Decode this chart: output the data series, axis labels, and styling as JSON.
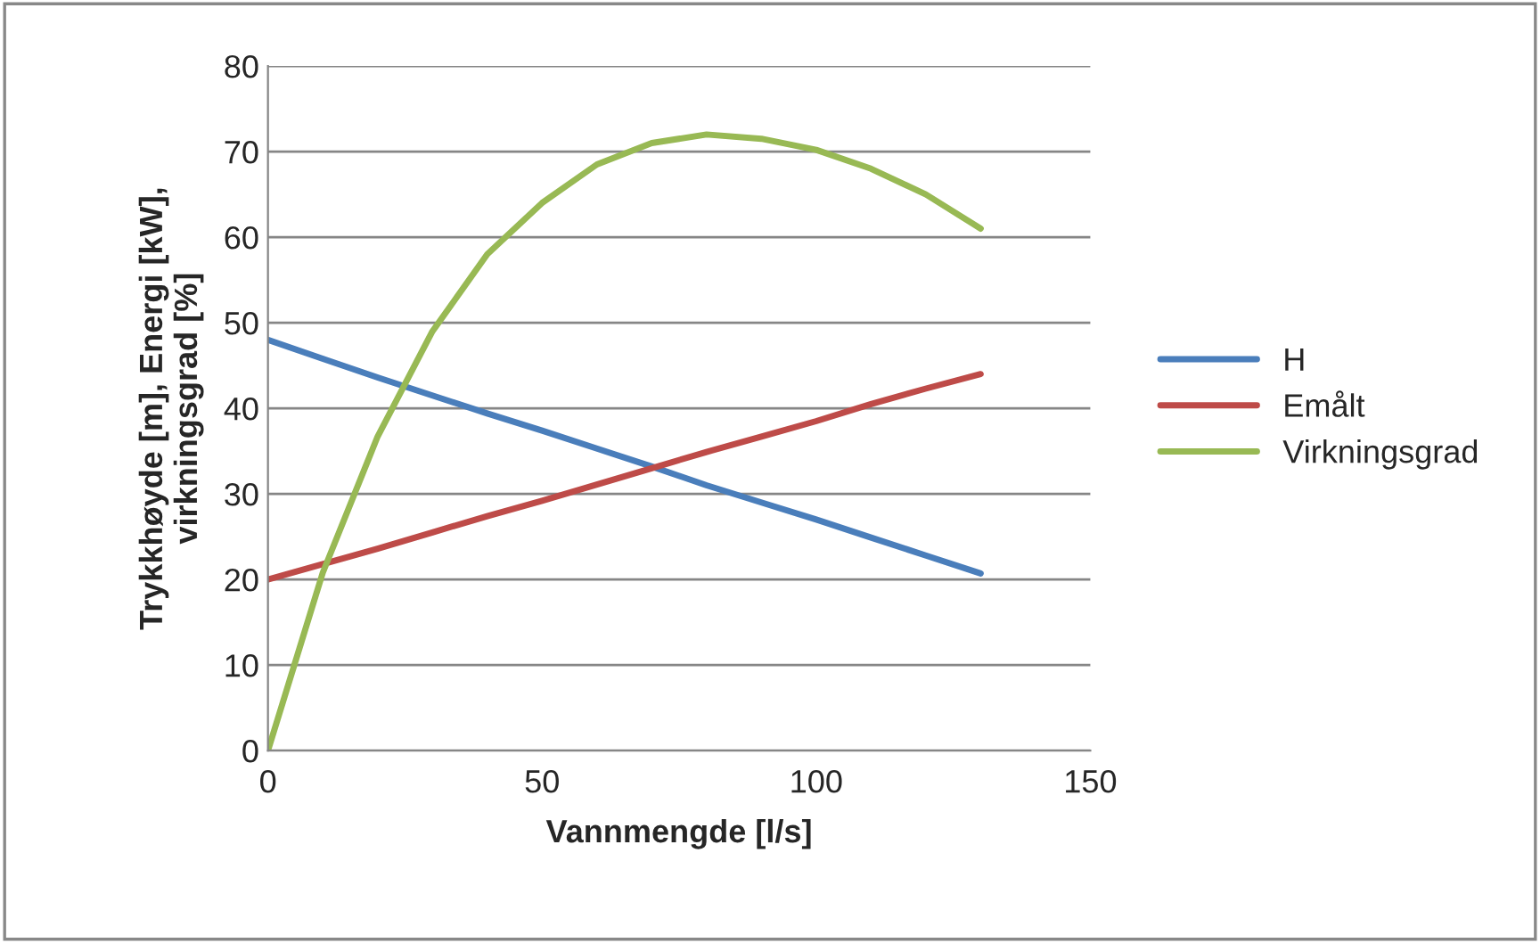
{
  "chart_data": {
    "type": "line",
    "xlabel": "Vannmengde [l/s]",
    "ylabel": "Trykkhøyde [m], Energi [kW],\nvirkningsgrad [%]",
    "x": [
      0,
      10,
      20,
      30,
      40,
      50,
      60,
      70,
      80,
      90,
      100,
      110,
      120,
      130
    ],
    "series": [
      {
        "name": "H",
        "color": "#4a7ebb",
        "values": [
          48,
          45.8,
          43.6,
          41.5,
          39.4,
          37.4,
          35.3,
          33.2,
          31,
          29,
          27,
          24.9,
          22.8,
          20.7
        ]
      },
      {
        "name": "Emålt",
        "color": "#be4b48",
        "values": [
          20,
          21.8,
          23.6,
          25.5,
          27.4,
          29.2,
          31.1,
          33,
          34.9,
          36.7,
          38.5,
          40.5,
          42.3,
          44
        ]
      },
      {
        "name": "Virkningsgrad",
        "color": "#98b954",
        "values": [
          0,
          20.8,
          36.7,
          49,
          58,
          64,
          68.5,
          71,
          72,
          71.5,
          70.2,
          68,
          65,
          61
        ]
      }
    ],
    "xlim": [
      0,
      150
    ],
    "xticks": [
      0,
      50,
      100,
      150
    ],
    "ylim": [
      0,
      80
    ],
    "yticks": [
      0,
      10,
      20,
      30,
      40,
      50,
      60,
      70,
      80
    ],
    "grid": "y",
    "legend": "right"
  }
}
